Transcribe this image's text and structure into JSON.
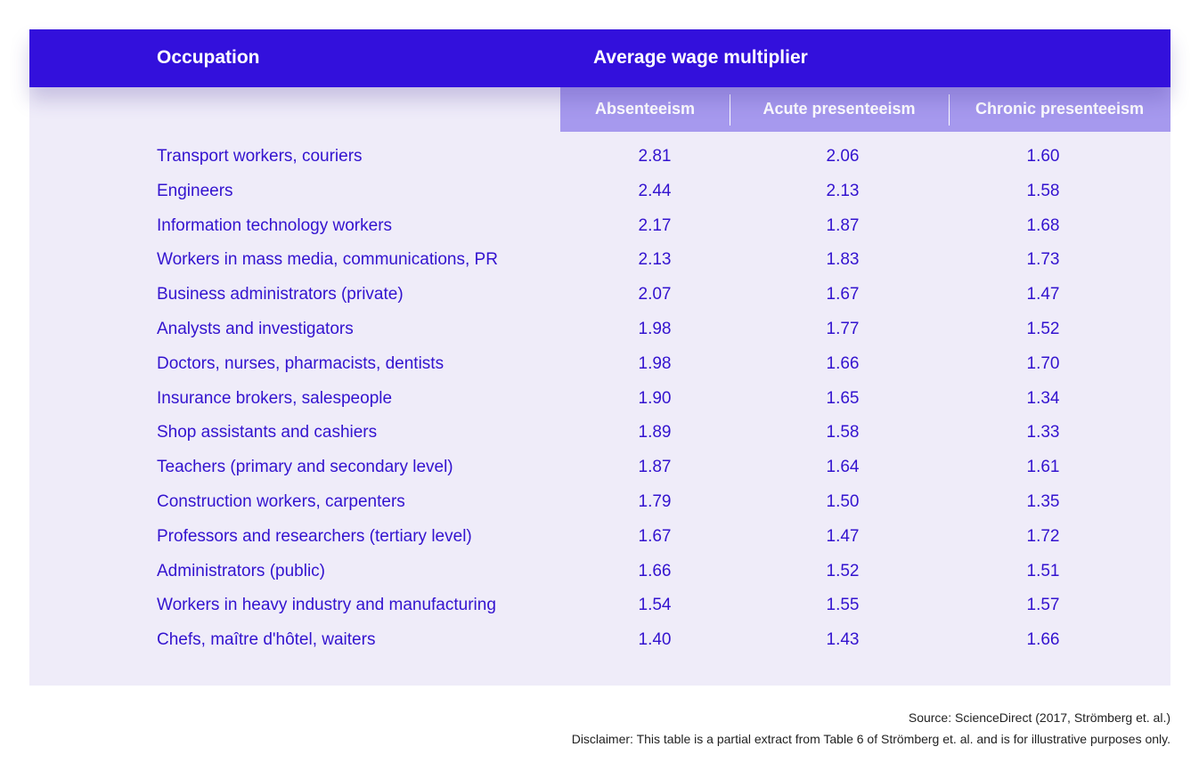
{
  "table": {
    "header": {
      "occupation": "Occupation",
      "group": "Average wage multiplier"
    },
    "subheaders": [
      "Absenteeism",
      "Acute presenteeism",
      "Chronic presenteeism"
    ]
  },
  "chart_data": {
    "type": "table",
    "columns": [
      "Occupation",
      "Absenteeism",
      "Acute presenteeism",
      "Chronic presenteeism"
    ],
    "rows": [
      {
        "occupation": "Transport workers, couriers",
        "absenteeism": "2.81",
        "acute": "2.06",
        "chronic": "1.60"
      },
      {
        "occupation": "Engineers",
        "absenteeism": "2.44",
        "acute": "2.13",
        "chronic": "1.58"
      },
      {
        "occupation": "Information technology workers",
        "absenteeism": "2.17",
        "acute": "1.87",
        "chronic": "1.68"
      },
      {
        "occupation": "Workers in mass media, communications, PR",
        "absenteeism": "2.13",
        "acute": "1.83",
        "chronic": "1.73"
      },
      {
        "occupation": "Business administrators (private)",
        "absenteeism": "2.07",
        "acute": "1.67",
        "chronic": "1.47"
      },
      {
        "occupation": "Analysts and investigators",
        "absenteeism": "1.98",
        "acute": "1.77",
        "chronic": "1.52"
      },
      {
        "occupation": "Doctors, nurses, pharmacists, dentists",
        "absenteeism": "1.98",
        "acute": "1.66",
        "chronic": "1.70"
      },
      {
        "occupation": "Insurance brokers, salespeople",
        "absenteeism": "1.90",
        "acute": "1.65",
        "chronic": "1.34"
      },
      {
        "occupation": "Shop assistants and cashiers",
        "absenteeism": "1.89",
        "acute": "1.58",
        "chronic": "1.33"
      },
      {
        "occupation": "Teachers (primary and secondary level)",
        "absenteeism": "1.87",
        "acute": "1.64",
        "chronic": "1.61"
      },
      {
        "occupation": "Construction workers, carpenters",
        "absenteeism": "1.79",
        "acute": "1.50",
        "chronic": "1.35"
      },
      {
        "occupation": "Professors and researchers (tertiary level)",
        "absenteeism": "1.67",
        "acute": "1.47",
        "chronic": "1.72"
      },
      {
        "occupation": "Administrators (public)",
        "absenteeism": "1.66",
        "acute": "1.52",
        "chronic": "1.51"
      },
      {
        "occupation": "Workers in heavy industry and manufacturing",
        "absenteeism": "1.54",
        "acute": "1.55",
        "chronic": "1.57"
      },
      {
        "occupation": "Chefs, maître d'hôtel, waiters",
        "absenteeism": "1.40",
        "acute": "1.43",
        "chronic": "1.66"
      }
    ]
  },
  "footer": {
    "source": "Source: ScienceDirect (2017, Strömberg et. al.)",
    "disclaimer": "Disclaimer: This table is a partial extract from Table 6 of Strömberg et. al. and is for illustrative purposes only."
  },
  "colors": {
    "header_bg": "#3310dc",
    "subheader_bg": "#a699ee",
    "panel_bg": "#efecf9",
    "text_accent": "#3313cf"
  }
}
